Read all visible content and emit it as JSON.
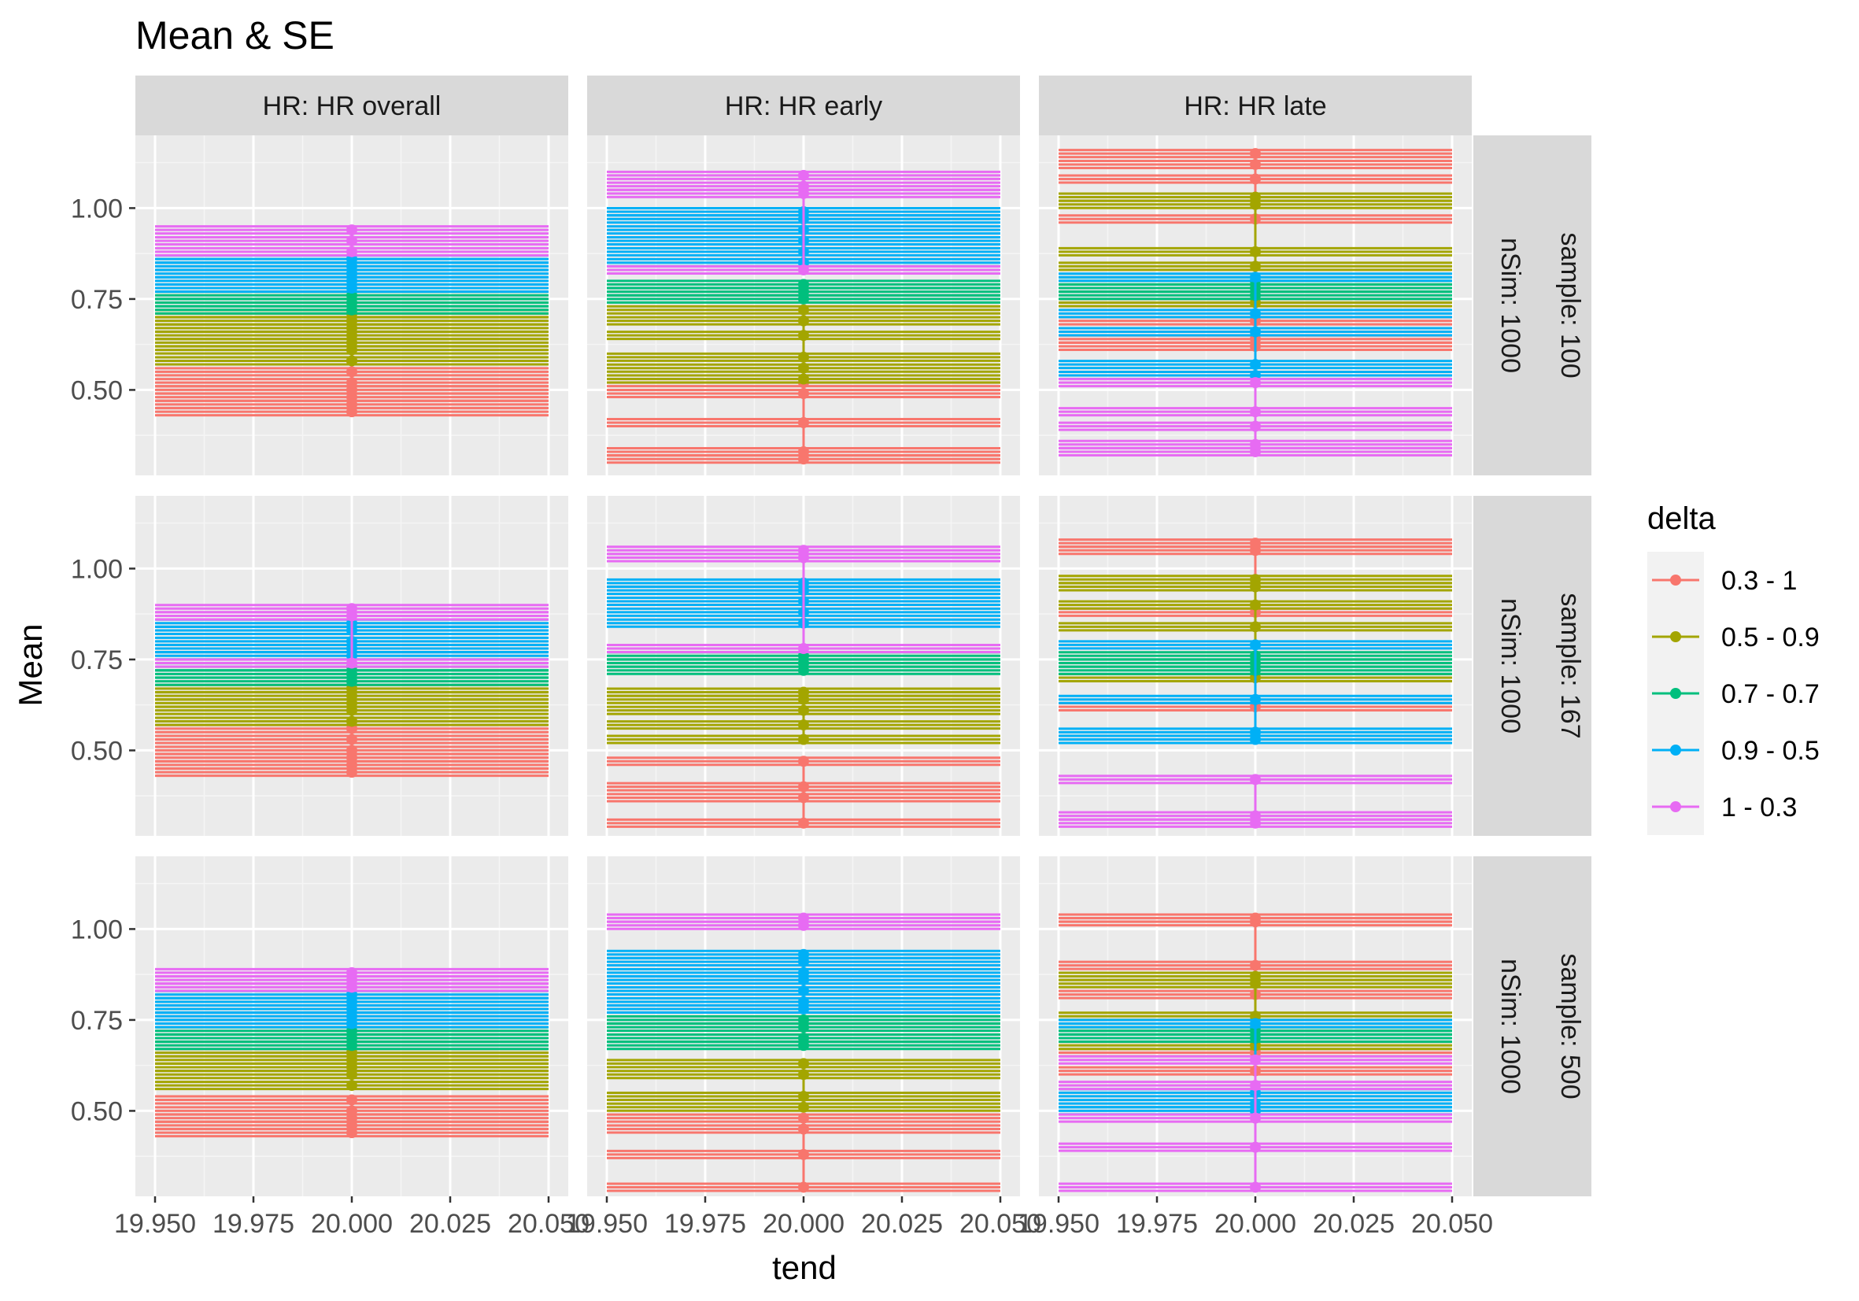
{
  "chart_data": {
    "type": "line",
    "title": "Mean & SE",
    "xlabel": "tend",
    "ylabel": "Mean",
    "xlim": [
      19.945,
      20.055
    ],
    "ylim": [
      0.265,
      1.2
    ],
    "x_ticks": [
      19.95,
      19.975,
      20.0,
      20.025,
      20.05
    ],
    "x_tick_labels": [
      "19.950",
      "19.975",
      "20.000",
      "20.025",
      "20.050"
    ],
    "y_ticks": [
      0.5,
      0.75,
      1.0
    ],
    "y_tick_labels": [
      "0.50",
      "0.75",
      "1.00"
    ],
    "grid": true,
    "legend_position": "right",
    "legend": {
      "title": "delta",
      "entries": [
        {
          "label": "0.3 - 1",
          "color": "#F8766D"
        },
        {
          "label": "0.5 - 0.9",
          "color": "#A3A500"
        },
        {
          "label": "0.7 - 0.7",
          "color": "#00BF7D"
        },
        {
          "label": "0.9 - 0.5",
          "color": "#00B0F6"
        },
        {
          "label": "1 - 0.3",
          "color": "#E76BF3"
        }
      ]
    },
    "col_facets": [
      "HR: HR overall",
      "HR: HR early",
      "HR: HR late"
    ],
    "row_facets": [
      {
        "nsim": "nSim: 1000",
        "sample": "sample: 100"
      },
      {
        "nsim": "nSim: 1000",
        "sample": "sample: 167"
      },
      {
        "nsim": "nSim: 1000",
        "sample": "sample: 500"
      }
    ],
    "x_value": 20.0,
    "panels": [
      [
        {
          "series": {
            "0.3 - 1": [
              0.44,
              0.46,
              0.48,
              0.5,
              0.52,
              0.55,
              0.58
            ],
            "0.5 - 0.9": [
              0.58,
              0.61,
              0.63,
              0.65,
              0.67,
              0.69,
              0.71
            ],
            "0.7 - 0.7": [
              0.72,
              0.74,
              0.76
            ],
            "0.9 - 0.5": [
              0.78,
              0.8,
              0.82,
              0.84,
              0.86
            ],
            "1 - 0.3": [
              0.88,
              0.91,
              0.94
            ]
          }
        },
        {
          "series": {
            "0.3 - 1": [
              0.31,
              0.33,
              0.41,
              0.49,
              0.52
            ],
            "0.5 - 0.9": [
              0.53,
              0.56,
              0.59,
              0.65,
              0.69,
              0.72
            ],
            "0.7 - 0.7": [
              0.75,
              0.77,
              0.79
            ],
            "0.9 - 0.5": [
              0.85,
              0.88,
              0.91,
              0.94,
              0.97,
              0.99
            ],
            "1 - 0.3": [
              0.83,
              1.04,
              1.06,
              1.09
            ]
          }
        },
        {
          "series": {
            "0.3 - 1": [
              0.62,
              0.64,
              0.69,
              0.97,
              1.08,
              1.12,
              1.15
            ],
            "0.5 - 0.9": [
              0.74,
              0.84,
              0.88,
              1.01,
              1.03
            ],
            "0.7 - 0.7": [
              0.76,
              0.78,
              0.8
            ],
            "0.9 - 0.5": [
              0.54,
              0.57,
              0.66,
              0.71,
              0.81
            ],
            "1 - 0.3": [
              0.33,
              0.35,
              0.4,
              0.44,
              0.52
            ]
          }
        }
      ],
      [
        {
          "series": {
            "0.3 - 1": [
              0.44,
              0.46,
              0.48,
              0.5,
              0.53,
              0.56
            ],
            "0.5 - 0.9": [
              0.58,
              0.61,
              0.63,
              0.65,
              0.67
            ],
            "0.7 - 0.7": [
              0.69,
              0.71,
              0.73
            ],
            "0.9 - 0.5": [
              0.76,
              0.78,
              0.8,
              0.83,
              0.85
            ],
            "1 - 0.3": [
              0.74,
              0.87,
              0.89
            ]
          }
        },
        {
          "series": {
            "0.3 - 1": [
              0.3,
              0.37,
              0.4,
              0.47
            ],
            "0.5 - 0.9": [
              0.53,
              0.57,
              0.61,
              0.64,
              0.66
            ],
            "0.7 - 0.7": [
              0.72,
              0.74,
              0.76
            ],
            "0.9 - 0.5": [
              0.85,
              0.88,
              0.91,
              0.94,
              0.96
            ],
            "1 - 0.3": [
              0.78,
              1.03,
              1.05
            ]
          }
        },
        {
          "series": {
            "0.3 - 1": [
              0.62,
              0.88,
              1.05,
              1.07
            ],
            "0.5 - 0.9": [
              0.7,
              0.84,
              0.9,
              0.95,
              0.97
            ],
            "0.7 - 0.7": [
              0.72,
              0.74,
              0.76
            ],
            "0.9 - 0.5": [
              0.53,
              0.55,
              0.64,
              0.79
            ],
            "1 - 0.3": [
              0.3,
              0.32,
              0.42
            ]
          }
        }
      ],
      [
        {
          "series": {
            "0.3 - 1": [
              0.44,
              0.46,
              0.48,
              0.5,
              0.53
            ],
            "0.5 - 0.9": [
              0.57,
              0.6,
              0.62,
              0.64,
              0.66
            ],
            "0.7 - 0.7": [
              0.68,
              0.7,
              0.72
            ],
            "0.9 - 0.5": [
              0.74,
              0.76,
              0.78,
              0.8,
              0.82
            ],
            "1 - 0.3": [
              0.84,
              0.86,
              0.88
            ]
          }
        },
        {
          "series": {
            "0.3 - 1": [
              0.29,
              0.38,
              0.45,
              0.48
            ],
            "0.5 - 0.9": [
              0.51,
              0.54,
              0.6,
              0.63
            ],
            "0.7 - 0.7": [
              0.68,
              0.7,
              0.73,
              0.75
            ],
            "0.9 - 0.5": [
              0.78,
              0.8,
              0.83,
              0.86,
              0.88,
              0.91,
              0.93
            ],
            "1 - 0.3": [
              1.01,
              1.03
            ]
          }
        },
        {
          "series": {
            "0.3 - 1": [
              0.61,
              0.66,
              0.82,
              0.9,
              1.02,
              1.03
            ],
            "0.5 - 0.9": [
              0.68,
              0.76,
              0.85,
              0.87
            ],
            "0.7 - 0.7": [
              0.7,
              0.72,
              0.73
            ],
            "0.9 - 0.5": [
              0.5,
              0.52,
              0.55,
              0.74
            ],
            "1 - 0.3": [
              0.29,
              0.4,
              0.48,
              0.57,
              0.64
            ]
          }
        }
      ]
    ]
  }
}
